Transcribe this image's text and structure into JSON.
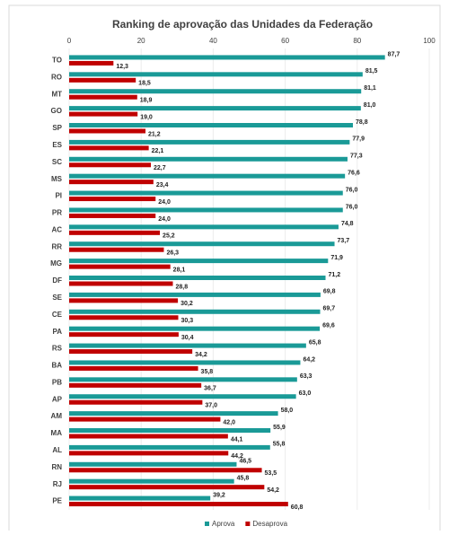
{
  "chart_data": {
    "type": "hbar",
    "title": "Ranking de aprovação das Unidades da Federação",
    "categories": [
      "TO",
      "RO",
      "MT",
      "GO",
      "SP",
      "ES",
      "SC",
      "MS",
      "PI",
      "PR",
      "AC",
      "RR",
      "MG",
      "DF",
      "SE",
      "CE",
      "PA",
      "RS",
      "BA",
      "PB",
      "AP",
      "AM",
      "MA",
      "AL",
      "RN",
      "RJ",
      "PE"
    ],
    "series": [
      {
        "name": "Aprova",
        "color": "#1a9a97",
        "values": [
          87.7,
          81.5,
          81.1,
          81.0,
          78.8,
          77.9,
          77.3,
          76.6,
          76.0,
          76.0,
          74.8,
          73.7,
          71.9,
          71.2,
          69.8,
          69.7,
          69.6,
          65.8,
          64.2,
          63.3,
          63.0,
          58.0,
          55.9,
          55.8,
          46.5,
          45.8,
          39.2
        ],
        "value_labels": [
          "87,7",
          "81,5",
          "81,1",
          "81,0",
          "78,8",
          "77,9",
          "77,3",
          "76,6",
          "76,0",
          "76,0",
          "74,8",
          "73,7",
          "71,9",
          "71,2",
          "69,8",
          "69,7",
          "69,6",
          "65,8",
          "64,2",
          "63,3",
          "63,0",
          "58,0",
          "55,9",
          "55,8",
          "46,5",
          "45,8",
          "39,2"
        ]
      },
      {
        "name": "Desaprova",
        "color": "#c00000",
        "values": [
          12.3,
          18.5,
          18.9,
          19.0,
          21.2,
          22.1,
          22.7,
          23.4,
          24.0,
          24.0,
          25.2,
          26.3,
          28.1,
          28.8,
          30.2,
          30.3,
          30.4,
          34.2,
          35.8,
          36.7,
          37.0,
          42.0,
          44.1,
          44.2,
          53.5,
          54.2,
          60.8
        ],
        "value_labels": [
          "12,3",
          "18,5",
          "18,9",
          "19,0",
          "21,2",
          "22,1",
          "22,7",
          "23,4",
          "24,0",
          "24,0",
          "25,2",
          "26,3",
          "28,1",
          "28,8",
          "30,2",
          "30,3",
          "30,4",
          "34,2",
          "35,8",
          "36,7",
          "37,0",
          "42,0",
          "44,1",
          "44,2",
          "53,5",
          "54,2",
          "60,8"
        ]
      }
    ],
    "xlim": [
      0,
      100
    ],
    "xticks": [
      0,
      20,
      40,
      60,
      80,
      100
    ],
    "grid": true,
    "legend": "bottom"
  }
}
